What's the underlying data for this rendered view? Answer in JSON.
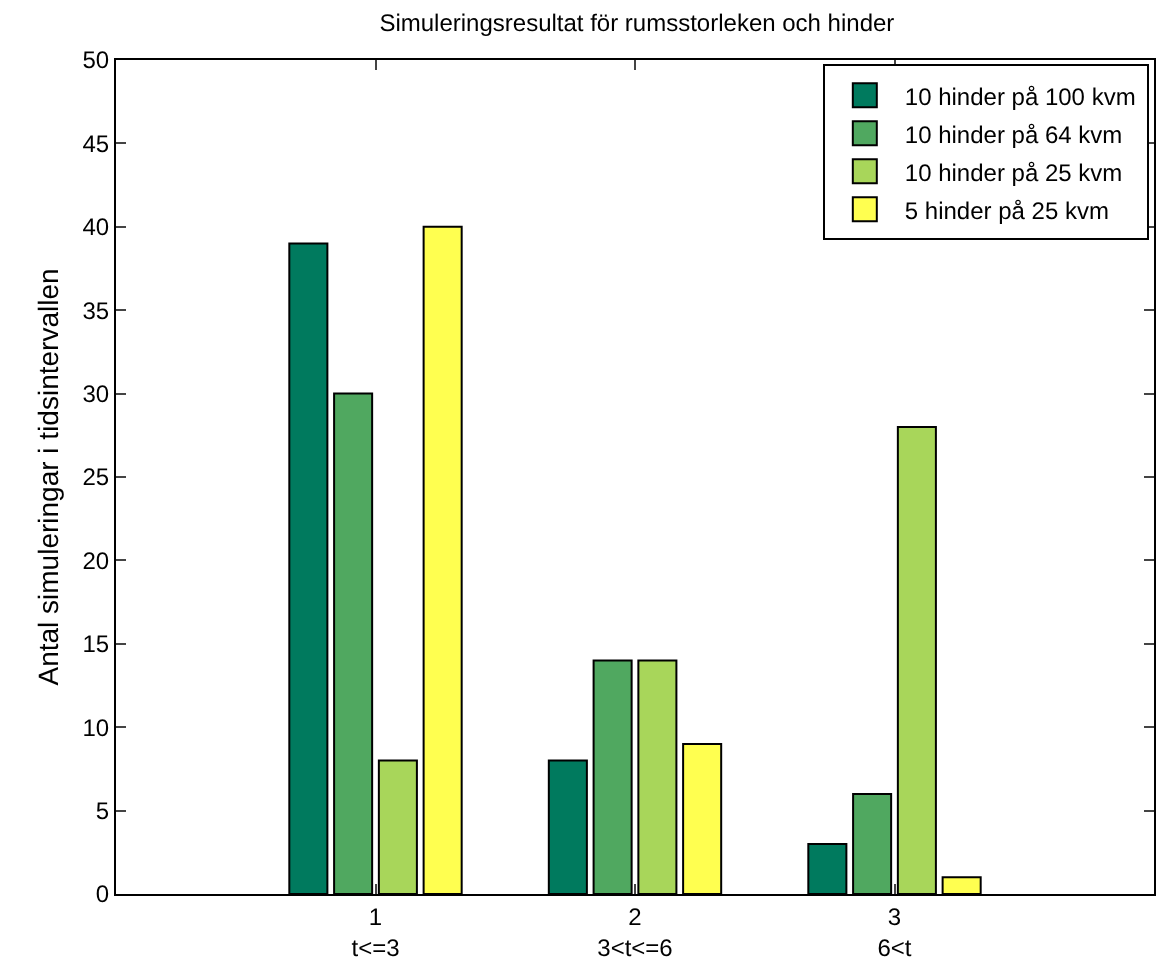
{
  "chart_data": {
    "type": "bar",
    "title": "Simuleringsresultat för rumsstorleken och hinder",
    "ylabel": "Antal simuleringar i tidsintervallen",
    "categories": [
      "1\nt<=3",
      "2\n3<t<=6",
      "3\n6<t"
    ],
    "ylim": [
      0,
      50
    ],
    "yticks": [
      0,
      5,
      10,
      15,
      20,
      25,
      30,
      35,
      40,
      45,
      50
    ],
    "series": [
      {
        "name": "10 hinder på 100 kvm",
        "color": "#007a5e",
        "values": [
          39,
          8,
          3
        ]
      },
      {
        "name": "10 hinder på 64 kvm",
        "color": "#50a860",
        "values": [
          30,
          14,
          6
        ]
      },
      {
        "name": "10 hinder på 25 kvm",
        "color": "#a8d65a",
        "values": [
          8,
          14,
          28
        ]
      },
      {
        "name": "5 hinder på 25 kvm",
        "color": "#ffff50",
        "values": [
          40,
          9,
          1
        ]
      }
    ],
    "grid": false,
    "legend": "top right"
  }
}
